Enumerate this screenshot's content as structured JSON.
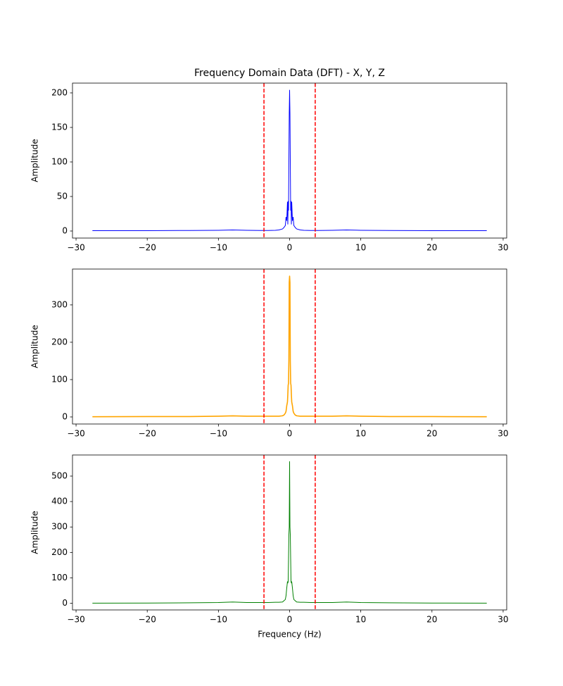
{
  "chart_data": [
    {
      "type": "line",
      "title": "Frequency Domain Data (DFT) - X, Y, Z",
      "y_label": "Amplitude",
      "x": [
        -27.7,
        -20,
        -14,
        -10,
        -8,
        -6,
        -4,
        -3,
        -2,
        -1.5,
        -1,
        -0.8,
        -0.6,
        -0.5,
        -0.4,
        -0.3,
        -0.25,
        -0.2,
        -0.15,
        -0.1,
        -0.05,
        0,
        0.05,
        0.1,
        0.15,
        0.2,
        0.25,
        0.3,
        0.4,
        0.5,
        0.6,
        0.8,
        1,
        1.5,
        2,
        3,
        4,
        6,
        8,
        10,
        14,
        20,
        27.7
      ],
      "series": [
        {
          "color": "#0000ff",
          "values": [
            0.5,
            0.5,
            0.8,
            1,
            1.5,
            1,
            0.8,
            0.8,
            1,
            1.5,
            3,
            5,
            8,
            20,
            15,
            42,
            10,
            43,
            30,
            100,
            170,
            204,
            170,
            100,
            30,
            43,
            10,
            42,
            15,
            20,
            8,
            5,
            3,
            1.5,
            1,
            0.8,
            0.8,
            1,
            1.5,
            1,
            0.8,
            0.5,
            0.5
          ]
        }
      ],
      "xlim": [
        -30.5,
        30.5
      ],
      "xticks": [
        {
          "value": -30,
          "label": "−30"
        },
        {
          "value": -20,
          "label": "−20"
        },
        {
          "value": -10,
          "label": "−10"
        },
        0,
        10,
        20,
        30
      ],
      "ylim": [
        -10.2,
        214.2
      ],
      "yticks": [
        0,
        50,
        100,
        150,
        200
      ],
      "vlines": [
        -3.6,
        3.6
      ],
      "vline_color": "#ff0000"
    },
    {
      "type": "line",
      "y_label": "Amplitude",
      "x": [
        -27.7,
        -20,
        -14,
        -10,
        -8,
        -6,
        -4,
        -3,
        -2,
        -1.5,
        -1,
        -0.8,
        -0.6,
        -0.5,
        -0.4,
        -0.3,
        -0.25,
        -0.2,
        -0.15,
        -0.1,
        -0.05,
        0,
        0.05,
        0.1,
        0.15,
        0.2,
        0.25,
        0.3,
        0.4,
        0.5,
        0.6,
        0.8,
        1,
        1.5,
        2,
        3,
        4,
        6,
        8,
        10,
        14,
        20,
        27.7
      ],
      "series": [
        {
          "color": "#ffa500",
          "values": [
            0.5,
            1,
            1,
            2,
            3,
            2,
            2,
            2,
            2,
            2,
            3,
            5,
            10,
            15,
            30,
            40,
            60,
            85,
            90,
            150,
            360,
            377,
            360,
            150,
            90,
            85,
            60,
            40,
            30,
            15,
            10,
            5,
            3,
            2,
            2,
            2,
            2,
            2,
            3,
            2,
            1,
            1,
            0.5
          ]
        }
      ],
      "xlim": [
        -30.5,
        30.5
      ],
      "xticks": [
        {
          "value": -30,
          "label": "−30"
        },
        {
          "value": -20,
          "label": "−20"
        },
        {
          "value": -10,
          "label": "−10"
        },
        0,
        10,
        20,
        30
      ],
      "ylim": [
        -18.9,
        396
      ],
      "yticks": [
        0,
        100,
        200,
        300
      ],
      "vlines": [
        -3.6,
        3.6
      ],
      "vline_color": "#ff0000"
    },
    {
      "type": "line",
      "y_label": "Amplitude",
      "x_label": "Frequency (Hz)",
      "x": [
        -27.7,
        -20,
        -14,
        -10,
        -8,
        -6,
        -4,
        -3,
        -2,
        -1.5,
        -1,
        -0.8,
        -0.6,
        -0.5,
        -0.4,
        -0.3,
        -0.25,
        -0.2,
        -0.15,
        -0.1,
        -0.05,
        0,
        0.05,
        0.1,
        0.15,
        0.2,
        0.25,
        0.3,
        0.4,
        0.5,
        0.6,
        0.8,
        1,
        1.5,
        2,
        3,
        4,
        6,
        8,
        10,
        14,
        20,
        27.7
      ],
      "series": [
        {
          "color": "#008000",
          "values": [
            0.5,
            1,
            2,
            3,
            5,
            3,
            3,
            3,
            4,
            4,
            5,
            10,
            15,
            30,
            60,
            85,
            80,
            85,
            175,
            270,
            300,
            557,
            300,
            270,
            175,
            85,
            80,
            85,
            60,
            30,
            15,
            10,
            5,
            4,
            4,
            3,
            3,
            3,
            5,
            3,
            2,
            1,
            0.5
          ]
        }
      ],
      "xlim": [
        -30.5,
        30.5
      ],
      "xticks": [
        {
          "value": -30,
          "label": "−30"
        },
        {
          "value": -20,
          "label": "−20"
        },
        {
          "value": -10,
          "label": "−10"
        },
        0,
        10,
        20,
        30
      ],
      "ylim": [
        -26,
        583
      ],
      "yticks": [
        0,
        100,
        200,
        300,
        400,
        500
      ],
      "vlines": [
        -3.6,
        3.6
      ],
      "vline_color": "#ff0000"
    }
  ]
}
